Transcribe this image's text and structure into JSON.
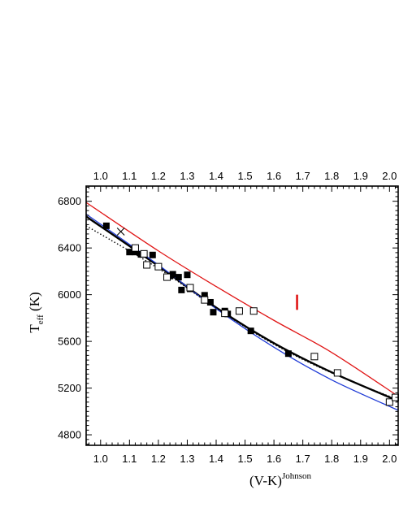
{
  "chart_data": {
    "type": "scatter",
    "title": "",
    "xlabel": "(V-K)",
    "xlabel_superscript": "Johnson",
    "ylabel": "T",
    "ylabel_subscript": "eff",
    "ylabel_unit": " (K)",
    "xlim": [
      0.95,
      2.03
    ],
    "ylim": [
      4710,
      6930
    ],
    "x_ticks": [
      "1.0",
      "1.1",
      "1.2",
      "1.3",
      "1.4",
      "1.5",
      "1.6",
      "1.7",
      "1.8",
      "1.9",
      "2.0"
    ],
    "y_ticks": [
      "4800",
      "5200",
      "5600",
      "6000",
      "6400",
      "6800"
    ],
    "grid": false,
    "colors": {
      "red": "#e01515",
      "blue": "#1f3bd6",
      "black": "#000000"
    },
    "series": [
      {
        "marker": "filled-square",
        "points": [
          [
            1.02,
            6590
          ],
          [
            1.1,
            6365
          ],
          [
            1.12,
            6365
          ],
          [
            1.14,
            6345
          ],
          [
            1.18,
            6340
          ],
          [
            1.24,
            6160
          ],
          [
            1.25,
            6175
          ],
          [
            1.27,
            6150
          ],
          [
            1.28,
            6040
          ],
          [
            1.3,
            6170
          ],
          [
            1.31,
            6050
          ],
          [
            1.36,
            5995
          ],
          [
            1.38,
            5935
          ],
          [
            1.39,
            5850
          ],
          [
            1.43,
            5860
          ],
          [
            1.44,
            5835
          ],
          [
            1.52,
            5690
          ],
          [
            1.65,
            5495
          ]
        ]
      },
      {
        "marker": "open-square",
        "points": [
          [
            1.12,
            6400
          ],
          [
            1.15,
            6350
          ],
          [
            1.16,
            6255
          ],
          [
            1.2,
            6240
          ],
          [
            1.23,
            6150
          ],
          [
            1.31,
            6060
          ],
          [
            1.36,
            5955
          ],
          [
            1.43,
            5840
          ],
          [
            1.48,
            5860
          ],
          [
            1.53,
            5860
          ],
          [
            1.74,
            5470
          ],
          [
            1.82,
            5330
          ],
          [
            2.0,
            5080
          ],
          [
            2.02,
            5120
          ]
        ]
      },
      {
        "marker": "cross",
        "points": [
          [
            1.07,
            6540
          ]
        ]
      }
    ],
    "fits": [
      {
        "style": "solid",
        "color": "red",
        "x": [
          0.95,
          1.2,
          1.4,
          1.6,
          1.8,
          2.03
        ],
        "y": [
          6790,
          6375,
          6070,
          5780,
          5505,
          5130
        ]
      },
      {
        "style": "solid",
        "color": "black",
        "x": [
          0.95,
          1.2,
          1.4,
          1.6,
          1.8,
          2.03
        ],
        "y": [
          6670,
          6245,
          5890,
          5585,
          5335,
          5090
        ]
      },
      {
        "style": "solid",
        "color": "blue",
        "x": [
          0.95,
          1.2,
          1.4,
          1.6,
          1.8,
          2.03
        ],
        "y": [
          6690,
          6255,
          5880,
          5550,
          5270,
          5010
        ]
      },
      {
        "style": "dotted",
        "color": "black",
        "x": [
          0.95,
          1.2,
          1.4,
          1.6,
          1.8,
          2.03
        ],
        "y": [
          6590,
          6225,
          5885,
          5575,
          5330,
          5100
        ]
      }
    ],
    "error_bar": {
      "color": "red",
      "x": 1.68,
      "y_low": 5870,
      "y_high": 6000
    }
  }
}
